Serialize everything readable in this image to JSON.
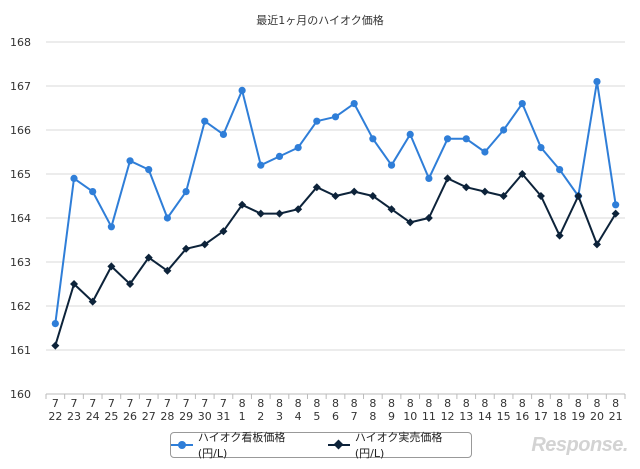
{
  "chart_data": {
    "type": "line",
    "title": "最近1ヶ月のハイオク価格",
    "xlabel": "",
    "ylabel": "",
    "ylim": [
      160,
      168
    ],
    "y_ticks": [
      "160",
      "161",
      "162",
      "163",
      "164",
      "165",
      "166",
      "167",
      "168"
    ],
    "grid": true,
    "legend_position": "bottom",
    "categories": [
      {
        "month": "7",
        "day": "22"
      },
      {
        "month": "7",
        "day": "23"
      },
      {
        "month": "7",
        "day": "24"
      },
      {
        "month": "7",
        "day": "25"
      },
      {
        "month": "7",
        "day": "26"
      },
      {
        "month": "7",
        "day": "27"
      },
      {
        "month": "7",
        "day": "28"
      },
      {
        "month": "7",
        "day": "29"
      },
      {
        "month": "7",
        "day": "30"
      },
      {
        "month": "7",
        "day": "31"
      },
      {
        "month": "8",
        "day": "1"
      },
      {
        "month": "8",
        "day": "2"
      },
      {
        "month": "8",
        "day": "3"
      },
      {
        "month": "8",
        "day": "4"
      },
      {
        "month": "8",
        "day": "5"
      },
      {
        "month": "8",
        "day": "6"
      },
      {
        "month": "8",
        "day": "7"
      },
      {
        "month": "8",
        "day": "8"
      },
      {
        "month": "8",
        "day": "9"
      },
      {
        "month": "8",
        "day": "10"
      },
      {
        "month": "8",
        "day": "11"
      },
      {
        "month": "8",
        "day": "12"
      },
      {
        "month": "8",
        "day": "13"
      },
      {
        "month": "8",
        "day": "14"
      },
      {
        "month": "8",
        "day": "15"
      },
      {
        "month": "8",
        "day": "16"
      },
      {
        "month": "8",
        "day": "17"
      },
      {
        "month": "8",
        "day": "18"
      },
      {
        "month": "8",
        "day": "19"
      },
      {
        "month": "8",
        "day": "20"
      },
      {
        "month": "8",
        "day": "21"
      }
    ],
    "series": [
      {
        "name": "ハイオク看板価格(円/L)",
        "color": "#2f7ed8",
        "marker": "circle",
        "values": [
          161.6,
          164.9,
          164.6,
          163.8,
          165.3,
          165.1,
          164.0,
          164.6,
          166.2,
          165.9,
          166.9,
          165.2,
          165.4,
          165.6,
          166.2,
          166.3,
          166.6,
          165.8,
          165.2,
          165.9,
          164.9,
          165.8,
          165.8,
          165.5,
          166.0,
          166.6,
          165.6,
          165.1,
          164.5,
          167.1,
          164.3
        ]
      },
      {
        "name": "ハイオク実売価格(円/L)",
        "color": "#0d233a",
        "marker": "diamond",
        "values": [
          161.1,
          162.5,
          162.1,
          162.9,
          162.5,
          163.1,
          162.8,
          163.3,
          163.4,
          163.7,
          164.3,
          164.1,
          164.1,
          164.2,
          164.7,
          164.5,
          164.6,
          164.5,
          164.2,
          163.9,
          164.0,
          164.9,
          164.7,
          164.6,
          164.5,
          165.0,
          164.5,
          163.6,
          164.5,
          163.4,
          164.1
        ]
      }
    ]
  },
  "watermark": "Response."
}
